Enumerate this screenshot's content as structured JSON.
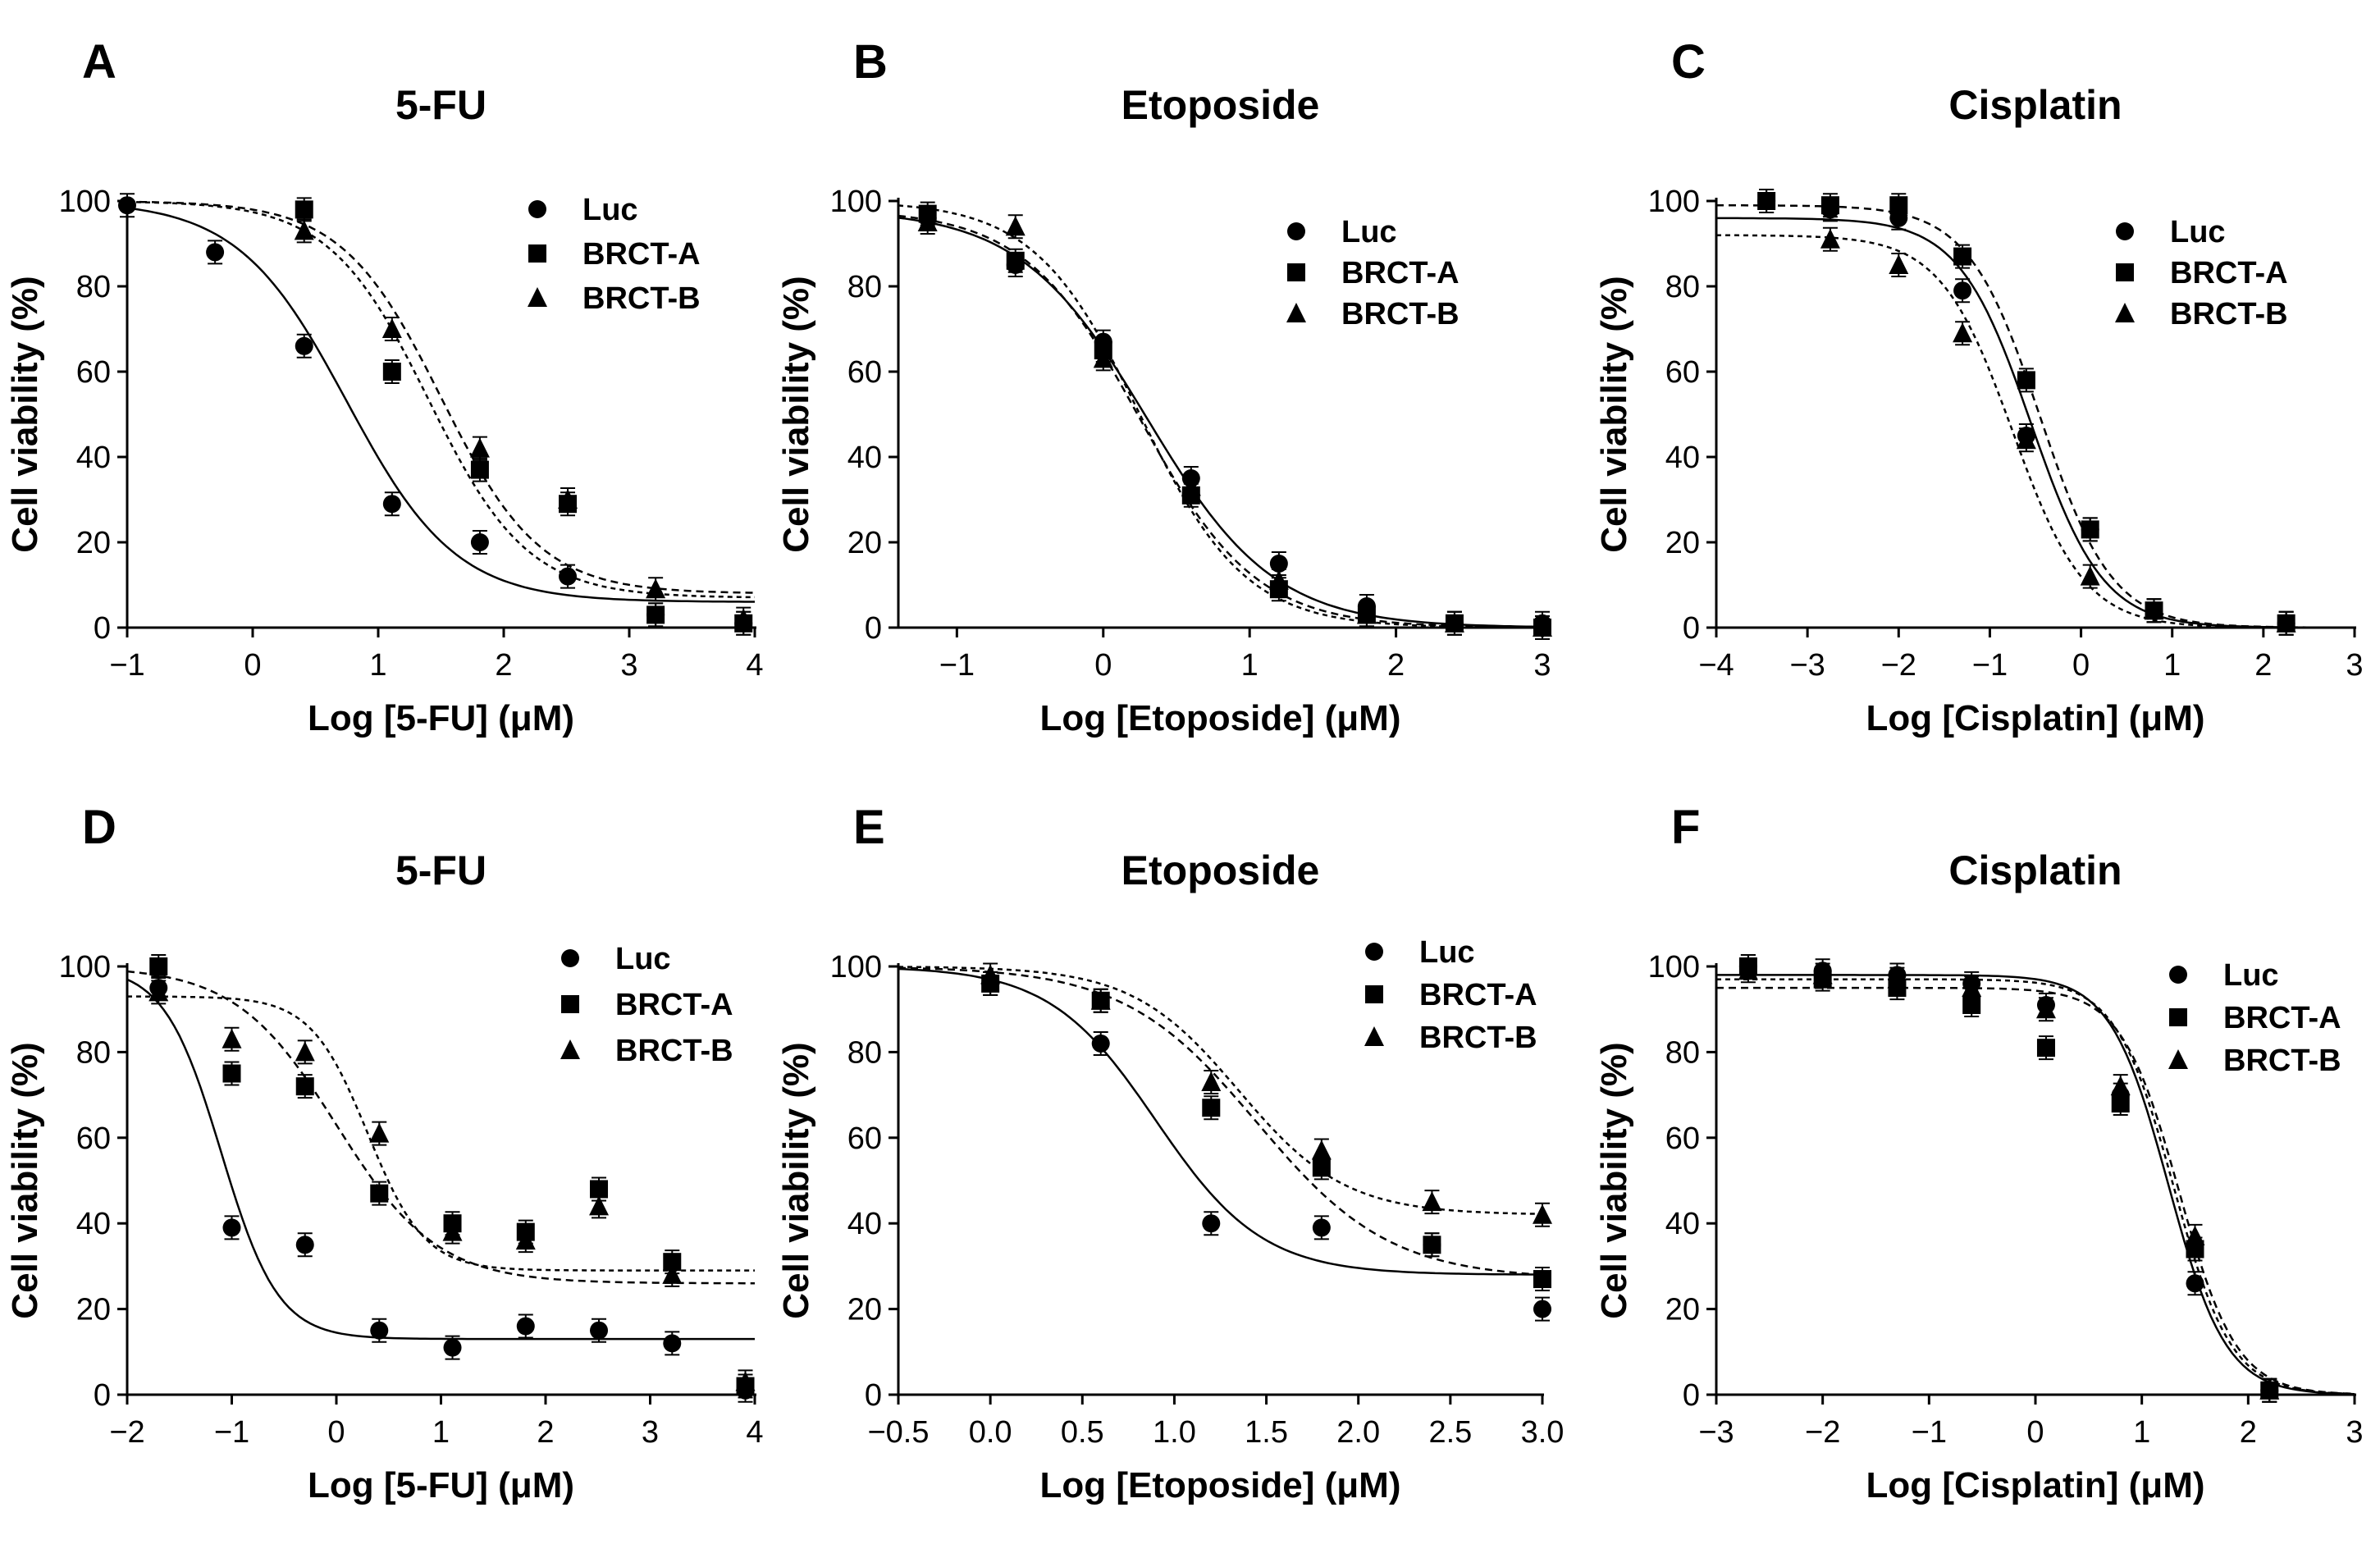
{
  "chart_data": [
    {
      "panel": "A",
      "type": "scatter",
      "title": "5-FU",
      "xlabel": "Log [5-FU] (μM)",
      "ylabel": "Cell viability (%)",
      "xlim": [
        -1,
        4
      ],
      "ylim": [
        0,
        100
      ],
      "xticks": [
        -1,
        0,
        1,
        2,
        3,
        4
      ],
      "xtick_labels": [
        "−1",
        "0",
        "1",
        "2",
        "3",
        "4"
      ],
      "yticks": [
        0,
        20,
        40,
        60,
        80,
        100
      ],
      "ytick_labels": [
        "0",
        "20",
        "40",
        "60",
        "80",
        "100"
      ],
      "legend_position": "top-right",
      "series": [
        {
          "name": "Luc",
          "marker": "circle",
          "line": "solid",
          "x": [
            -1,
            -0.3,
            0.41,
            1.11,
            1.81,
            2.51,
            3.21,
            3.91
          ],
          "y": [
            99,
            88,
            66,
            29,
            20,
            12,
            3,
            1
          ],
          "fit": {
            "bottom": 6,
            "top": 100,
            "log_ic50": 0.75,
            "hill": -1.0
          }
        },
        {
          "name": "BRCT-A",
          "marker": "square",
          "line": "dashed",
          "x": [
            0.41,
            1.11,
            1.81,
            2.51,
            3.21,
            3.91
          ],
          "y": [
            98,
            60,
            37,
            29,
            3,
            1
          ],
          "fit": {
            "bottom": 8,
            "top": 100,
            "log_ic50": 1.5,
            "hill": -1.1
          }
        },
        {
          "name": "BRCT-B",
          "marker": "triangle",
          "line": "dashed",
          "x": [
            0.41,
            1.11,
            1.81,
            2.51,
            3.21,
            3.91
          ],
          "y": [
            93,
            70,
            42,
            30,
            9,
            2
          ],
          "fit": {
            "bottom": 7,
            "top": 100,
            "log_ic50": 1.4,
            "hill": -1.1
          }
        }
      ]
    },
    {
      "panel": "B",
      "type": "scatter",
      "title": "Etoposide",
      "xlabel": "Log [Etoposide] (μM)",
      "ylabel": "Cell viability (%)",
      "xlim": [
        -1.4,
        3
      ],
      "ylim": [
        0,
        100
      ],
      "xticks": [
        -1,
        0,
        1,
        2,
        3
      ],
      "xtick_labels": [
        "−1",
        "0",
        "1",
        "2",
        "3"
      ],
      "yticks": [
        0,
        20,
        40,
        60,
        80,
        100
      ],
      "ytick_labels": [
        "0",
        "20",
        "40",
        "60",
        "80",
        "100"
      ],
      "legend_position": "top-right",
      "series": [
        {
          "name": "Luc",
          "marker": "circle",
          "line": "solid",
          "x": [
            -1.2,
            -0.6,
            0,
            0.6,
            1.2,
            1.8,
            2.4,
            3
          ],
          "y": [
            96,
            85,
            67,
            35,
            15,
            5,
            1,
            1
          ],
          "fit": {
            "bottom": 0,
            "top": 98,
            "log_ic50": 0.3,
            "hill": -1.0
          }
        },
        {
          "name": "BRCT-A",
          "marker": "square",
          "line": "dashed",
          "x": [
            -1.2,
            -0.6,
            0,
            0.6,
            1.2,
            1.8,
            2.4,
            3
          ],
          "y": [
            97,
            86,
            65,
            31,
            9,
            3,
            1,
            0
          ],
          "fit": {
            "bottom": 0,
            "top": 98,
            "log_ic50": 0.25,
            "hill": -1.1
          }
        },
        {
          "name": "BRCT-B",
          "marker": "triangle",
          "line": "dashed",
          "x": [
            -1.2,
            -0.6,
            0,
            0.6,
            1.2,
            1.8,
            2.4,
            3
          ],
          "y": [
            95,
            94,
            63,
            33,
            11,
            3,
            1,
            0
          ],
          "fit": {
            "bottom": 0,
            "top": 100,
            "log_ic50": 0.25,
            "hill": -1.2
          }
        }
      ]
    },
    {
      "panel": "C",
      "type": "scatter",
      "title": "Cisplatin",
      "xlabel": "Log [Cisplatin] (μM)",
      "ylabel": "Cell viability (%)",
      "xlim": [
        -4,
        3
      ],
      "ylim": [
        0,
        100
      ],
      "xticks": [
        -4,
        -3,
        -2,
        -1,
        0,
        1,
        2,
        3
      ],
      "xtick_labels": [
        "−4",
        "−3",
        "−2",
        "−1",
        "0",
        "1",
        "2",
        "3"
      ],
      "yticks": [
        0,
        20,
        40,
        60,
        80,
        100
      ],
      "ytick_labels": [
        "0",
        "20",
        "40",
        "60",
        "80",
        "100"
      ],
      "legend_position": "top-right",
      "series": [
        {
          "name": "Luc",
          "marker": "circle",
          "line": "solid",
          "x": [
            -3.45,
            -2.75,
            -2,
            -1.3,
            -0.6,
            0.1,
            0.8,
            2.25
          ],
          "y": [
            100,
            98,
            96,
            79,
            45,
            23,
            4,
            1
          ],
          "fit": {
            "bottom": 0,
            "top": 96,
            "log_ic50": -0.55,
            "hill": -1.1
          }
        },
        {
          "name": "BRCT-A",
          "marker": "square",
          "line": "dashed",
          "x": [
            -3.45,
            -2.75,
            -2,
            -1.3,
            -0.6,
            0.1,
            0.8,
            2.25
          ],
          "y": [
            100,
            99,
            99,
            87,
            58,
            23,
            4,
            1
          ],
          "fit": {
            "bottom": 0,
            "top": 99,
            "log_ic50": -0.45,
            "hill": -1.1
          }
        },
        {
          "name": "BRCT-B",
          "marker": "triangle",
          "line": "dashed",
          "x": [
            -2.75,
            -2,
            -1.3,
            -0.6,
            0.1,
            0.8,
            2.25
          ],
          "y": [
            91,
            85,
            69,
            44,
            12,
            4,
            1
          ],
          "fit": {
            "bottom": 0,
            "top": 92,
            "log_ic50": -0.75,
            "hill": -1.1
          }
        }
      ]
    },
    {
      "panel": "D",
      "type": "scatter",
      "title": "5-FU",
      "xlabel": "Log [5-FU] (μM)",
      "ylabel": "Cell viability (%)",
      "xlim": [
        -2,
        4
      ],
      "ylim": [
        0,
        100
      ],
      "xticks": [
        -2,
        -1,
        0,
        1,
        2,
        3,
        4
      ],
      "xtick_labels": [
        "−2",
        "−1",
        "0",
        "1",
        "2",
        "3",
        "4"
      ],
      "yticks": [
        0,
        20,
        40,
        60,
        80,
        100
      ],
      "ytick_labels": [
        "0",
        "20",
        "40",
        "60",
        "80",
        "100"
      ],
      "legend_position": "top-right",
      "series": [
        {
          "name": "Luc",
          "marker": "circle",
          "line": "solid",
          "x": [
            -1.7,
            -1,
            -0.3,
            0.41,
            1.11,
            1.81,
            2.51,
            3.21,
            3.91
          ],
          "y": [
            95,
            39,
            35,
            15,
            11,
            16,
            15,
            12,
            1
          ],
          "fit": {
            "bottom": 13,
            "top": 100,
            "log_ic50": -1.1,
            "hill": -1.6
          }
        },
        {
          "name": "BRCT-A",
          "marker": "square",
          "line": "dashed",
          "x": [
            -1.7,
            -1,
            -0.3,
            0.41,
            1.11,
            1.81,
            2.51,
            3.21,
            3.91
          ],
          "y": [
            100,
            75,
            72,
            47,
            40,
            38,
            48,
            31,
            2
          ],
          "fit": {
            "bottom": 26,
            "top": 100,
            "log_ic50": 0.0,
            "hill": -0.9
          }
        },
        {
          "name": "BRCT-B",
          "marker": "triangle",
          "line": "dashed",
          "x": [
            -1.7,
            -1,
            -0.3,
            0.41,
            1.11,
            1.81,
            2.51,
            3.21,
            3.91
          ],
          "y": [
            94,
            83,
            80,
            61,
            38,
            36,
            44,
            28,
            3
          ],
          "fit": {
            "bottom": 29,
            "top": 93,
            "log_ic50": 0.3,
            "hill": -1.6
          }
        }
      ]
    },
    {
      "panel": "E",
      "type": "scatter",
      "title": "Etoposide",
      "xlabel": "Log [Etoposide] (μM)",
      "ylabel": "Cell viability (%)",
      "xlim": [
        -0.5,
        3
      ],
      "ylim": [
        0,
        100
      ],
      "xticks": [
        -0.5,
        0,
        0.5,
        1,
        1.5,
        2,
        2.5,
        3
      ],
      "xtick_labels": [
        "−0.5",
        "0.0",
        "0.5",
        "1.0",
        "1.5",
        "2.0",
        "2.5",
        "3.0"
      ],
      "yticks": [
        0,
        20,
        40,
        60,
        80,
        100
      ],
      "ytick_labels": [
        "0",
        "20",
        "40",
        "60",
        "80",
        "100"
      ],
      "legend_position": "top-right",
      "series": [
        {
          "name": "Luc",
          "marker": "circle",
          "line": "solid",
          "x": [
            0,
            0.6,
            1.2,
            1.8,
            2.4,
            3
          ],
          "y": [
            96,
            82,
            40,
            39,
            35,
            20
          ],
          "fit": {
            "bottom": 28,
            "top": 100,
            "log_ic50": 0.9,
            "hill": -1.5
          }
        },
        {
          "name": "BRCT-A",
          "marker": "square",
          "line": "dashed",
          "x": [
            0,
            0.6,
            1.2,
            1.8,
            2.4,
            3
          ],
          "y": [
            96,
            92,
            67,
            53,
            35,
            27
          ],
          "fit": {
            "bottom": 27,
            "top": 100,
            "log_ic50": 1.45,
            "hill": -1.2
          }
        },
        {
          "name": "BRCT-B",
          "marker": "triangle",
          "line": "dashed",
          "x": [
            0,
            0.6,
            1.2,
            1.8,
            2.4,
            3
          ],
          "y": [
            98,
            92,
            73,
            57,
            45,
            42
          ],
          "fit": {
            "bottom": 42,
            "top": 100,
            "log_ic50": 1.35,
            "hill": -1.5
          }
        }
      ]
    },
    {
      "panel": "F",
      "type": "scatter",
      "title": "Cisplatin",
      "xlabel": "Log [Cisplatin] (μM)",
      "ylabel": "Cell viability (%)",
      "xlim": [
        -3,
        3
      ],
      "ylim": [
        0,
        100
      ],
      "xticks": [
        -3,
        -2,
        -1,
        0,
        1,
        2,
        3
      ],
      "xtick_labels": [
        "−3",
        "−2",
        "−1",
        "0",
        "1",
        "2",
        "3"
      ],
      "yticks": [
        0,
        20,
        40,
        60,
        80,
        100
      ],
      "ytick_labels": [
        "0",
        "20",
        "40",
        "60",
        "80",
        "100"
      ],
      "legend_position": "top-right",
      "series": [
        {
          "name": "Luc",
          "marker": "circle",
          "line": "solid",
          "x": [
            -2.7,
            -2,
            -1.3,
            -0.6,
            0.1,
            0.8,
            1.5,
            2.2
          ],
          "y": [
            100,
            99,
            98,
            96,
            91,
            70,
            26,
            1
          ],
          "fit": {
            "bottom": 0,
            "top": 98,
            "log_ic50": 1.25,
            "hill": -1.6
          }
        },
        {
          "name": "BRCT-A",
          "marker": "square",
          "line": "dashed",
          "x": [
            -2.7,
            -2,
            -1.3,
            -0.6,
            0.1,
            0.8,
            1.5,
            2.2
          ],
          "y": [
            100,
            97,
            95,
            91,
            81,
            68,
            34,
            1
          ],
          "fit": {
            "bottom": 0,
            "top": 95,
            "log_ic50": 1.35,
            "hill": -1.6
          }
        },
        {
          "name": "BRCT-B",
          "marker": "triangle",
          "line": "dashed",
          "x": [
            -2.7,
            -2,
            -1.3,
            -0.6,
            0.1,
            0.8,
            1.5,
            2.2
          ],
          "y": [
            99,
            98,
            97,
            95,
            90,
            72,
            37,
            1
          ],
          "fit": {
            "bottom": 0,
            "top": 97,
            "log_ic50": 1.3,
            "hill": -1.6
          }
        }
      ]
    }
  ]
}
